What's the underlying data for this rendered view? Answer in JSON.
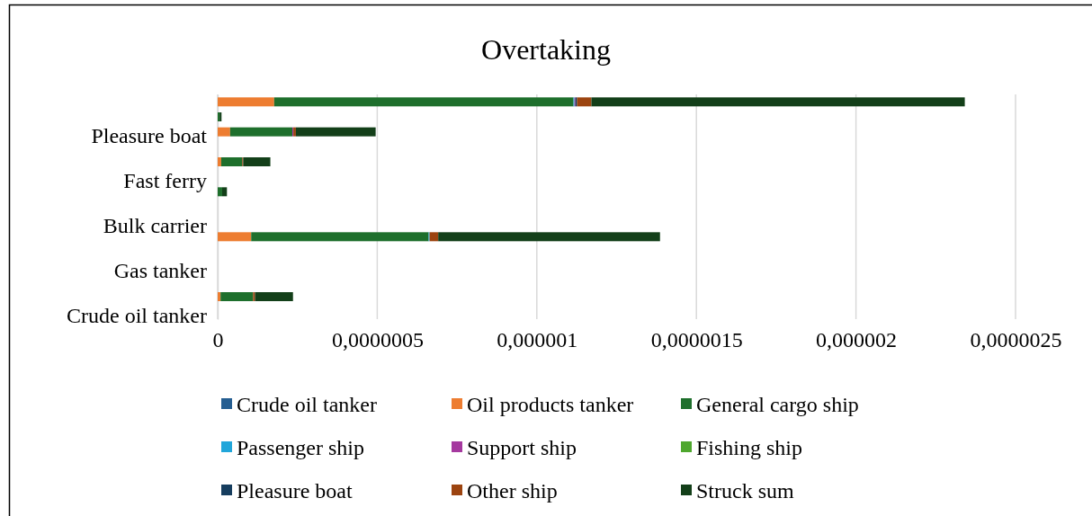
{
  "chart_data": {
    "type": "bar",
    "orientation": "horizontal",
    "stacked": true,
    "title": "Overtaking",
    "categories": [
      null,
      null,
      "Pleasure boat",
      null,
      null,
      "Fast ferry",
      null,
      null,
      "Bulk carrier",
      null,
      null,
      "Gas tanker",
      null,
      null,
      "Crude oil tanker"
    ],
    "xlim": [
      0,
      2.5e-06
    ],
    "xticks": [
      0,
      {
        "value": 5e-07,
        "label": "0,0000005"
      },
      {
        "value": 1e-06,
        "label": "0,000001"
      },
      {
        "value": 1.5e-06,
        "label": "0,0000015"
      },
      {
        "value": 2e-06,
        "label": "0,000002"
      },
      {
        "value": 2.5e-06,
        "label": "0,0000025"
      }
    ],
    "grid": "x",
    "legend": "bottom",
    "series": [
      {
        "name": "Crude oil tanker",
        "color": "#255e91",
        "values": [
          null,
          null,
          null,
          null,
          null,
          null,
          null,
          null,
          null,
          null,
          null,
          null,
          null,
          null,
          null
        ]
      },
      {
        "name": "Oil products tanker",
        "color": "#ed7d31",
        "values": [
          1.77e-07,
          null,
          3.9e-08,
          null,
          1.1e-08,
          null,
          null,
          null,
          null,
          1.05e-07,
          null,
          null,
          null,
          9e-09,
          null
        ]
      },
      {
        "name": "General cargo ship",
        "color": "#1e6f2c",
        "values": [
          9.38e-07,
          6e-09,
          1.95e-07,
          null,
          6.6e-08,
          null,
          1.4e-08,
          null,
          null,
          5.56e-07,
          null,
          null,
          null,
          1.02e-07,
          null
        ]
      },
      {
        "name": "Passenger ship",
        "color": "#21a6da",
        "values": [
          3e-09,
          null,
          null,
          null,
          null,
          null,
          null,
          null,
          null,
          3e-09,
          null,
          null,
          null,
          null,
          null
        ]
      },
      {
        "name": "Support ship",
        "color": "#a5399f",
        "values": [
          3e-09,
          null,
          3e-09,
          null,
          null,
          null,
          null,
          null,
          null,
          null,
          null,
          null,
          null,
          null,
          null
        ]
      },
      {
        "name": "Fishing ship",
        "color": "#4ea72e",
        "values": [
          null,
          null,
          null,
          null,
          null,
          null,
          null,
          null,
          null,
          null,
          null,
          null,
          null,
          null,
          null
        ]
      },
      {
        "name": "Pleasure boat",
        "color": "#163d5e",
        "values": [
          5e-09,
          null,
          null,
          null,
          null,
          null,
          null,
          null,
          null,
          null,
          null,
          null,
          null,
          null,
          null
        ]
      },
      {
        "name": "Other ship",
        "color": "#9c4410",
        "values": [
          4.5e-08,
          null,
          8e-09,
          null,
          3e-09,
          null,
          null,
          null,
          null,
          2.7e-08,
          null,
          null,
          null,
          6e-09,
          null
        ]
      },
      {
        "name": "Struck sum",
        "color": "#133f19",
        "values": [
          1.17e-06,
          6e-09,
          2.5e-07,
          null,
          8.5e-08,
          null,
          1.5e-08,
          null,
          null,
          6.95e-07,
          null,
          null,
          null,
          1.19e-07,
          null
        ]
      }
    ]
  }
}
